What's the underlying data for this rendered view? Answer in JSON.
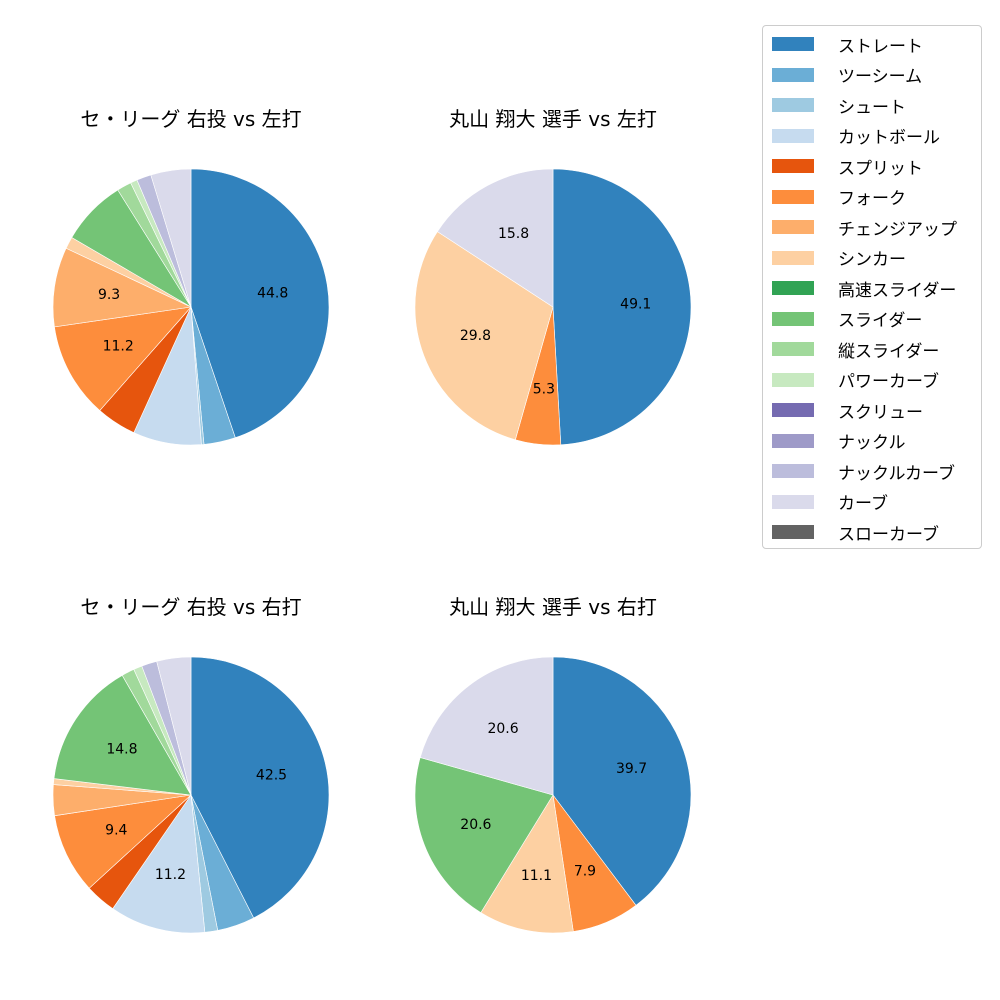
{
  "legend": {
    "items": [
      {
        "label": "ストレート",
        "color": "#3182bd"
      },
      {
        "label": "ツーシーム",
        "color": "#6baed6"
      },
      {
        "label": "シュート",
        "color": "#9ecae1"
      },
      {
        "label": "カットボール",
        "color": "#c6dbef"
      },
      {
        "label": "スプリット",
        "color": "#e6550d"
      },
      {
        "label": "フォーク",
        "color": "#fd8d3c"
      },
      {
        "label": "チェンジアップ",
        "color": "#fdae6b"
      },
      {
        "label": "シンカー",
        "color": "#fdd0a2"
      },
      {
        "label": "高速スライダー",
        "color": "#31a354"
      },
      {
        "label": "スライダー",
        "color": "#74c476"
      },
      {
        "label": "縦スライダー",
        "color": "#a1d99b"
      },
      {
        "label": "パワーカーブ",
        "color": "#c7e9c0"
      },
      {
        "label": "スクリュー",
        "color": "#756bb1"
      },
      {
        "label": "ナックル",
        "color": "#9e9ac8"
      },
      {
        "label": "ナックルカーブ",
        "color": "#bcbddc"
      },
      {
        "label": "カーブ",
        "color": "#dadaeb"
      },
      {
        "label": "スローカーブ",
        "color": "#636363"
      }
    ]
  },
  "chart_data": [
    {
      "type": "pie",
      "title": "セ・リーグ 右投 vs 左打",
      "start_angle": 90,
      "direction": "clockwise",
      "label_threshold": 9,
      "slices": [
        {
          "name": "ストレート",
          "value": 44.8
        },
        {
          "name": "ツーシーム",
          "value": 3.7
        },
        {
          "name": "シュート",
          "value": 0.3
        },
        {
          "name": "カットボール",
          "value": 8.0
        },
        {
          "name": "スプリット",
          "value": 4.7
        },
        {
          "name": "フォーク",
          "value": 11.2
        },
        {
          "name": "チェンジアップ",
          "value": 9.3
        },
        {
          "name": "シンカー",
          "value": 1.4
        },
        {
          "name": "スライダー",
          "value": 7.7
        },
        {
          "name": "縦スライダー",
          "value": 1.7
        },
        {
          "name": "パワーカーブ",
          "value": 0.8
        },
        {
          "name": "ナックルカーブ",
          "value": 1.7
        },
        {
          "name": "カーブ",
          "value": 4.7
        }
      ],
      "visible_labels": [
        "44.8",
        "11.2",
        "9.3"
      ]
    },
    {
      "type": "pie",
      "title": "丸山 翔大 選手 vs 左打",
      "start_angle": 90,
      "direction": "clockwise",
      "label_threshold": 5,
      "slices": [
        {
          "name": "ストレート",
          "value": 49.1
        },
        {
          "name": "フォーク",
          "value": 5.3
        },
        {
          "name": "シンカー",
          "value": 29.8
        },
        {
          "name": "カーブ",
          "value": 15.8
        }
      ],
      "visible_labels": [
        "49.1",
        "5.3",
        "29.8",
        "15.8"
      ]
    },
    {
      "type": "pie",
      "title": "セ・リーグ 右投 vs 右打",
      "start_angle": 90,
      "direction": "clockwise",
      "label_threshold": 9,
      "slices": [
        {
          "name": "ストレート",
          "value": 42.5
        },
        {
          "name": "ツーシーム",
          "value": 4.4
        },
        {
          "name": "シュート",
          "value": 1.5
        },
        {
          "name": "カットボール",
          "value": 11.2
        },
        {
          "name": "スプリット",
          "value": 3.6
        },
        {
          "name": "フォーク",
          "value": 9.4
        },
        {
          "name": "チェンジアップ",
          "value": 3.6
        },
        {
          "name": "シンカー",
          "value": 0.7
        },
        {
          "name": "スライダー",
          "value": 14.8
        },
        {
          "name": "縦スライダー",
          "value": 1.5
        },
        {
          "name": "パワーカーブ",
          "value": 1.0
        },
        {
          "name": "ナックルカーブ",
          "value": 1.8
        },
        {
          "name": "カーブ",
          "value": 4.0
        }
      ],
      "visible_labels": [
        "42.5",
        "11.2",
        "9.4",
        "14.8"
      ]
    },
    {
      "type": "pie",
      "title": "丸山 翔大 選手 vs 右打",
      "start_angle": 90,
      "direction": "clockwise",
      "label_threshold": 5,
      "slices": [
        {
          "name": "ストレート",
          "value": 39.7
        },
        {
          "name": "フォーク",
          "value": 7.9
        },
        {
          "name": "シンカー",
          "value": 11.1
        },
        {
          "name": "スライダー",
          "value": 20.6
        },
        {
          "name": "カーブ",
          "value": 20.6
        }
      ],
      "visible_labels": [
        "39.7",
        "7.9",
        "11.1",
        "20.6",
        "20.6"
      ]
    }
  ]
}
